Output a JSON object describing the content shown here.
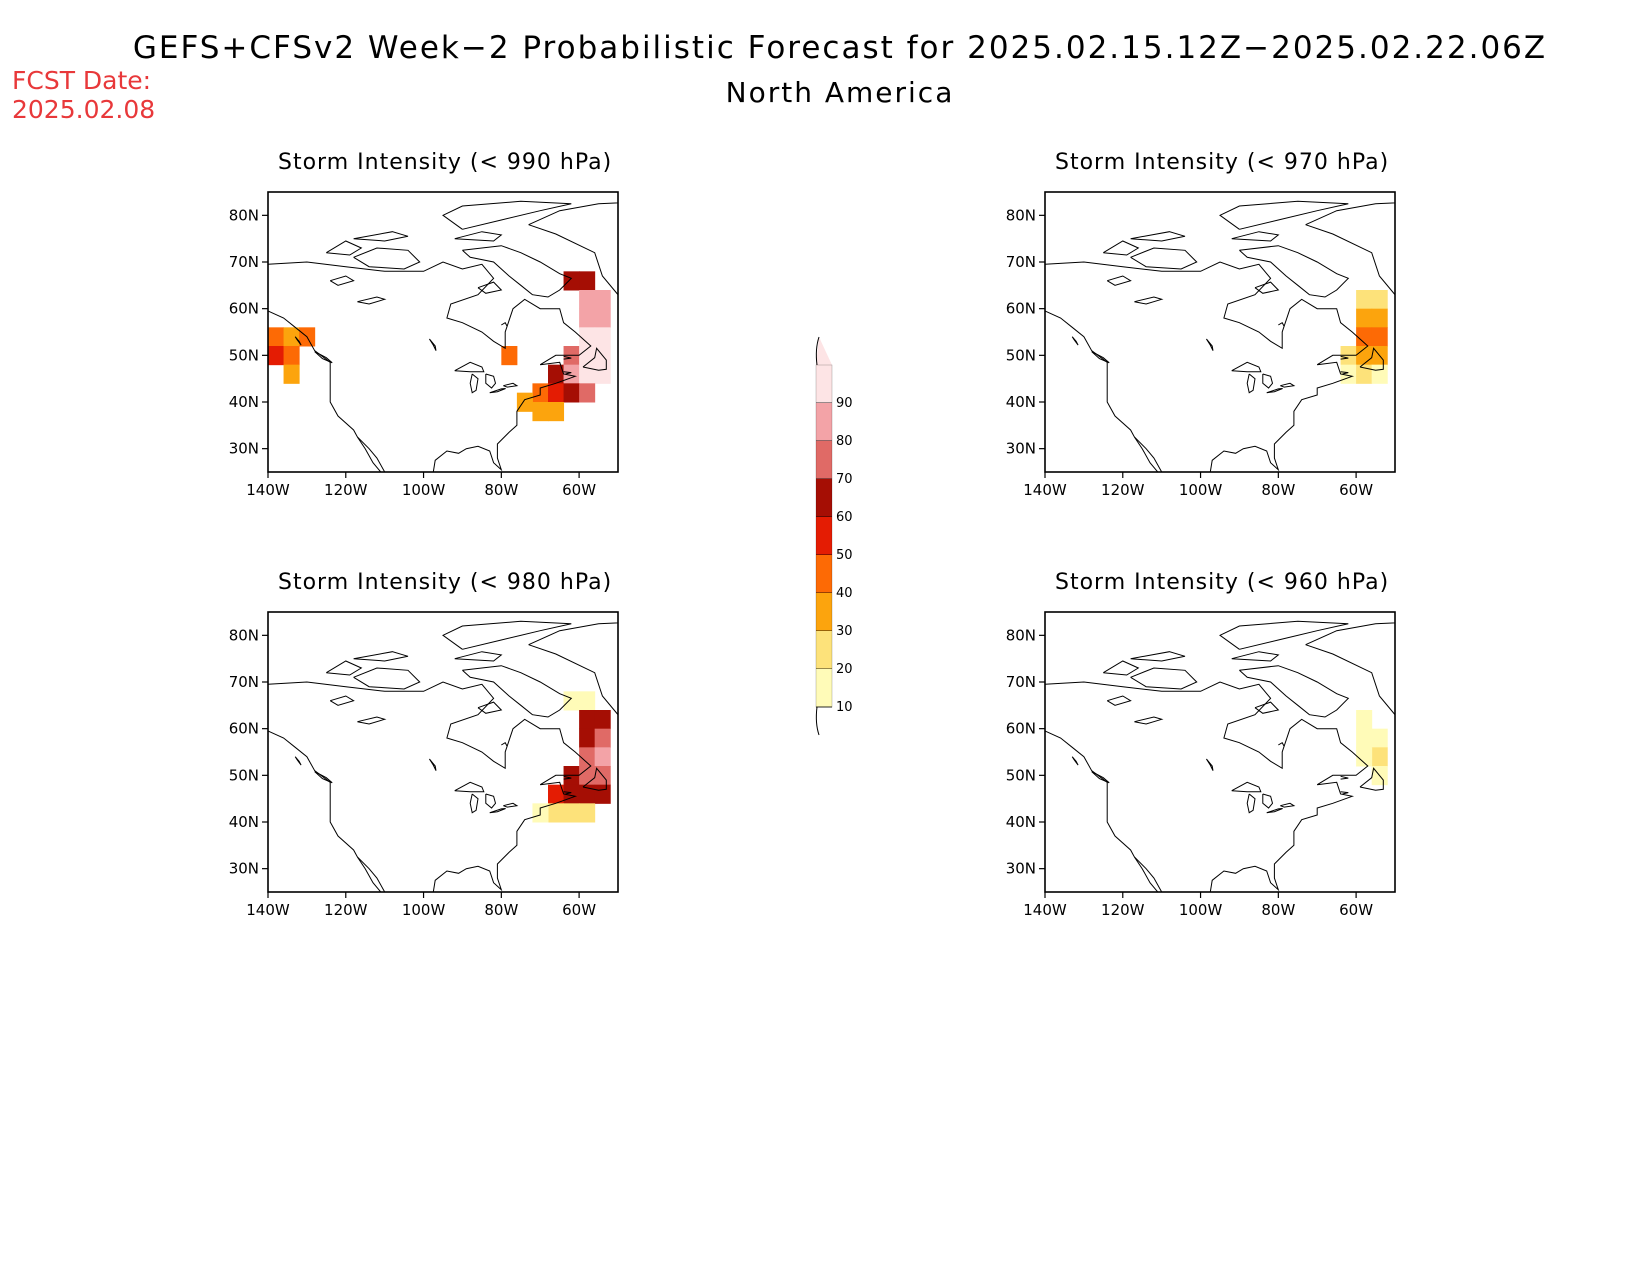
{
  "header": {
    "title": "GEFS+CFSv2 Week−2 Probabilistic Forecast for 2025.02.15.12Z−2025.02.22.06Z",
    "subtitle": "North America",
    "fcst_date_label": "FCST Date:",
    "fcst_date_value": "2025.02.08"
  },
  "axes": {
    "lon_ticks": [
      "140W",
      "120W",
      "100W",
      "80W",
      "60W"
    ],
    "lat_ticks": [
      "80N",
      "70N",
      "60N",
      "50N",
      "40N",
      "30N"
    ],
    "lon_values": [
      -140,
      -120,
      -100,
      -80,
      -60
    ],
    "lat_values": [
      80,
      70,
      60,
      50,
      40,
      30
    ],
    "lon_range": [
      -140,
      -50
    ],
    "lat_range": [
      25,
      85
    ]
  },
  "colorbar": {
    "levels": [
      "10",
      "20",
      "30",
      "40",
      "50",
      "60",
      "70",
      "80",
      "90"
    ],
    "colors": [
      "#fffbb8",
      "#fde27a",
      "#fca40d",
      "#fd6a05",
      "#e41c03",
      "#a50e04",
      "#e06a66",
      "#f3a3a7",
      "#fde4e5"
    ]
  },
  "chart_data": [
    {
      "type": "heatmap",
      "title": "Storm Intensity (< 990 hPa)",
      "cells": [
        {
          "lon": -138,
          "lat": 54,
          "v": 40
        },
        {
          "lon": -138,
          "lat": 50,
          "v": 50
        },
        {
          "lon": -134,
          "lat": 54,
          "v": 30
        },
        {
          "lon": -134,
          "lat": 50,
          "v": 40
        },
        {
          "lon": -134,
          "lat": 46,
          "v": 30
        },
        {
          "lon": -130,
          "lat": 54,
          "v": 40
        },
        {
          "lon": -78,
          "lat": 50,
          "v": 40
        },
        {
          "lon": -62,
          "lat": 66,
          "v": 60
        },
        {
          "lon": -58,
          "lat": 66,
          "v": 60
        },
        {
          "lon": -58,
          "lat": 62,
          "v": 80
        },
        {
          "lon": -54,
          "lat": 62,
          "v": 80
        },
        {
          "lon": -58,
          "lat": 58,
          "v": 80
        },
        {
          "lon": -54,
          "lat": 58,
          "v": 80
        },
        {
          "lon": -58,
          "lat": 54,
          "v": 90
        },
        {
          "lon": -54,
          "lat": 54,
          "v": 90
        },
        {
          "lon": -62,
          "lat": 50,
          "v": 70
        },
        {
          "lon": -58,
          "lat": 50,
          "v": 90
        },
        {
          "lon": -54,
          "lat": 50,
          "v": 90
        },
        {
          "lon": -66,
          "lat": 46,
          "v": 60
        },
        {
          "lon": -62,
          "lat": 46,
          "v": 80
        },
        {
          "lon": -58,
          "lat": 46,
          "v": 90
        },
        {
          "lon": -54,
          "lat": 46,
          "v": 90
        },
        {
          "lon": -70,
          "lat": 42,
          "v": 40
        },
        {
          "lon": -66,
          "lat": 42,
          "v": 50
        },
        {
          "lon": -62,
          "lat": 42,
          "v": 60
        },
        {
          "lon": -58,
          "lat": 42,
          "v": 70
        },
        {
          "lon": -74,
          "lat": 40,
          "v": 30
        },
        {
          "lon": -70,
          "lat": 38,
          "v": 30
        },
        {
          "lon": -66,
          "lat": 38,
          "v": 30
        }
      ]
    },
    {
      "type": "heatmap",
      "title": "Storm Intensity (< 970 hPa)",
      "cells": [
        {
          "lon": -58,
          "lat": 62,
          "v": 20
        },
        {
          "lon": -54,
          "lat": 62,
          "v": 20
        },
        {
          "lon": -58,
          "lat": 58,
          "v": 30
        },
        {
          "lon": -54,
          "lat": 58,
          "v": 30
        },
        {
          "lon": -58,
          "lat": 54,
          "v": 40
        },
        {
          "lon": -54,
          "lat": 54,
          "v": 40
        },
        {
          "lon": -62,
          "lat": 50,
          "v": 20
        },
        {
          "lon": -58,
          "lat": 50,
          "v": 30
        },
        {
          "lon": -54,
          "lat": 50,
          "v": 30
        },
        {
          "lon": -62,
          "lat": 46,
          "v": 10
        },
        {
          "lon": -58,
          "lat": 46,
          "v": 20
        },
        {
          "lon": -54,
          "lat": 46,
          "v": 10
        }
      ]
    },
    {
      "type": "heatmap",
      "title": "Storm Intensity (< 980 hPa)",
      "cells": [
        {
          "lon": -58,
          "lat": 66,
          "v": 10
        },
        {
          "lon": -62,
          "lat": 66,
          "v": 10
        },
        {
          "lon": -58,
          "lat": 62,
          "v": 60
        },
        {
          "lon": -54,
          "lat": 62,
          "v": 60
        },
        {
          "lon": -58,
          "lat": 58,
          "v": 60
        },
        {
          "lon": -54,
          "lat": 58,
          "v": 70
        },
        {
          "lon": -58,
          "lat": 54,
          "v": 70
        },
        {
          "lon": -54,
          "lat": 54,
          "v": 80
        },
        {
          "lon": -62,
          "lat": 50,
          "v": 60
        },
        {
          "lon": -58,
          "lat": 50,
          "v": 70
        },
        {
          "lon": -54,
          "lat": 50,
          "v": 70
        },
        {
          "lon": -66,
          "lat": 46,
          "v": 50
        },
        {
          "lon": -62,
          "lat": 46,
          "v": 60
        },
        {
          "lon": -58,
          "lat": 46,
          "v": 60
        },
        {
          "lon": -54,
          "lat": 46,
          "v": 60
        },
        {
          "lon": -66,
          "lat": 42,
          "v": 20
        },
        {
          "lon": -62,
          "lat": 42,
          "v": 20
        },
        {
          "lon": -58,
          "lat": 42,
          "v": 20
        },
        {
          "lon": -70,
          "lat": 42,
          "v": 10
        }
      ]
    },
    {
      "type": "heatmap",
      "title": "Storm Intensity (< 960 hPa)",
      "cells": [
        {
          "lon": -58,
          "lat": 62,
          "v": 10
        },
        {
          "lon": -54,
          "lat": 58,
          "v": 10
        },
        {
          "lon": -58,
          "lat": 58,
          "v": 10
        },
        {
          "lon": -54,
          "lat": 54,
          "v": 20
        },
        {
          "lon": -58,
          "lat": 54,
          "v": 10
        },
        {
          "lon": -54,
          "lat": 50,
          "v": 10
        }
      ]
    }
  ]
}
